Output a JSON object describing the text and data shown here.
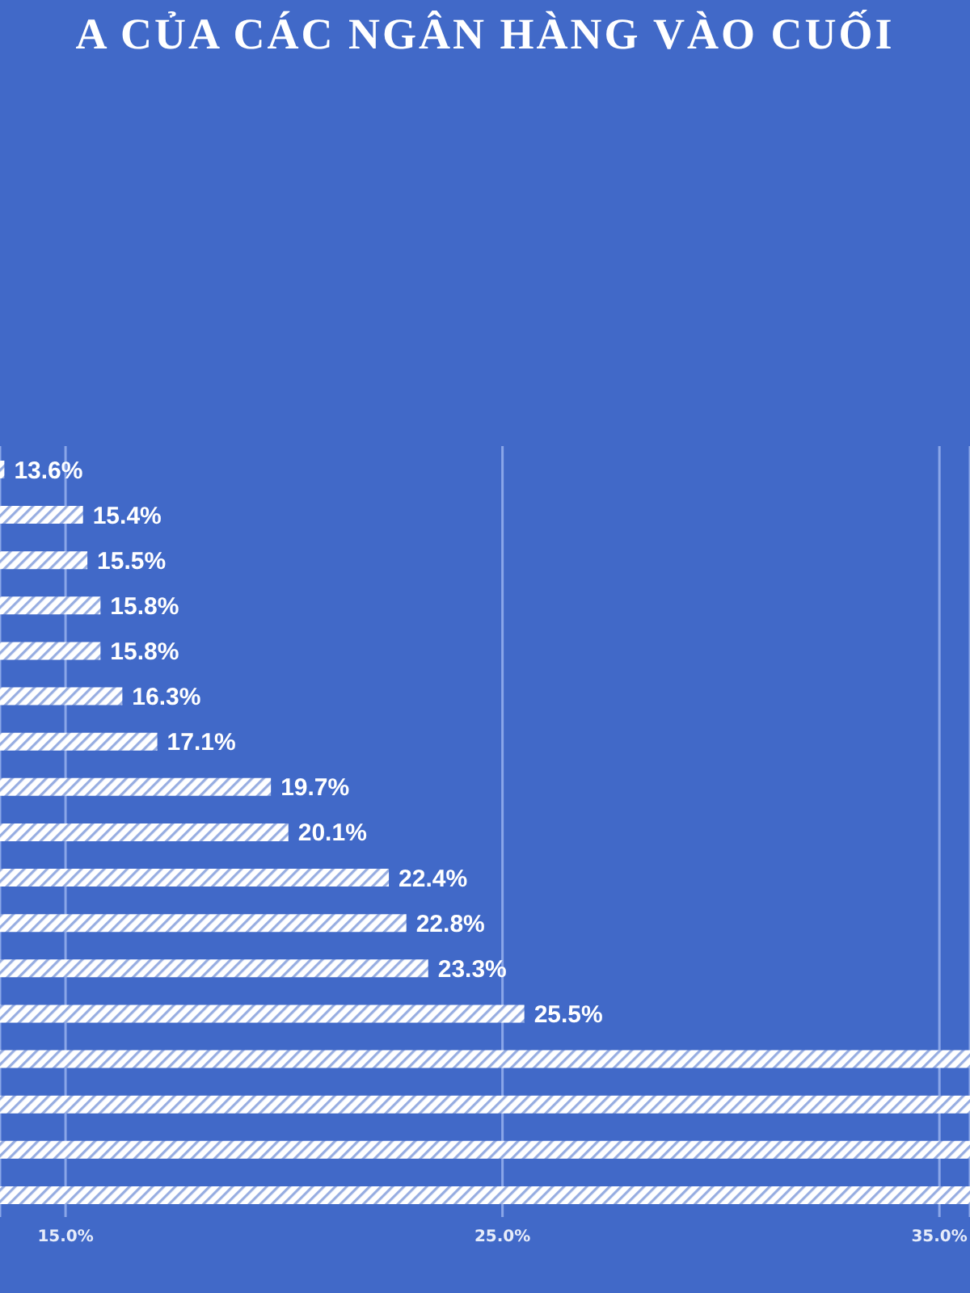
{
  "chart_data": {
    "type": "bar",
    "orientation": "horizontal",
    "title": "A CỦA CÁC NGÂN HÀNG VÀO CUỐI",
    "categories": [
      null,
      null,
      null,
      null,
      null,
      null,
      null,
      null,
      null,
      null,
      null,
      null,
      null,
      null,
      null,
      null,
      null
    ],
    "values": [
      13.6,
      15.4,
      15.5,
      15.8,
      15.8,
      16.3,
      17.1,
      19.7,
      20.1,
      22.4,
      22.8,
      23.3,
      25.5,
      35.7,
      35.7,
      35.7,
      35.7
    ],
    "value_labels": [
      "13.6%",
      "15.4%",
      "15.5%",
      "15.8%",
      "15.8%",
      "16.3%",
      "17.1%",
      "19.7%",
      "20.1%",
      "22.4%",
      "22.8%",
      "23.3%",
      "25.5%",
      null,
      null,
      null,
      null
    ],
    "color": "#ffffff",
    "xlim": [
      13.5,
      35.7
    ],
    "xticks": [
      {
        "value": 15,
        "label": "15.0%"
      },
      {
        "value": 25,
        "label": "25.0%"
      },
      {
        "value": 35,
        "label": "35.0%"
      }
    ],
    "grid": "x"
  }
}
